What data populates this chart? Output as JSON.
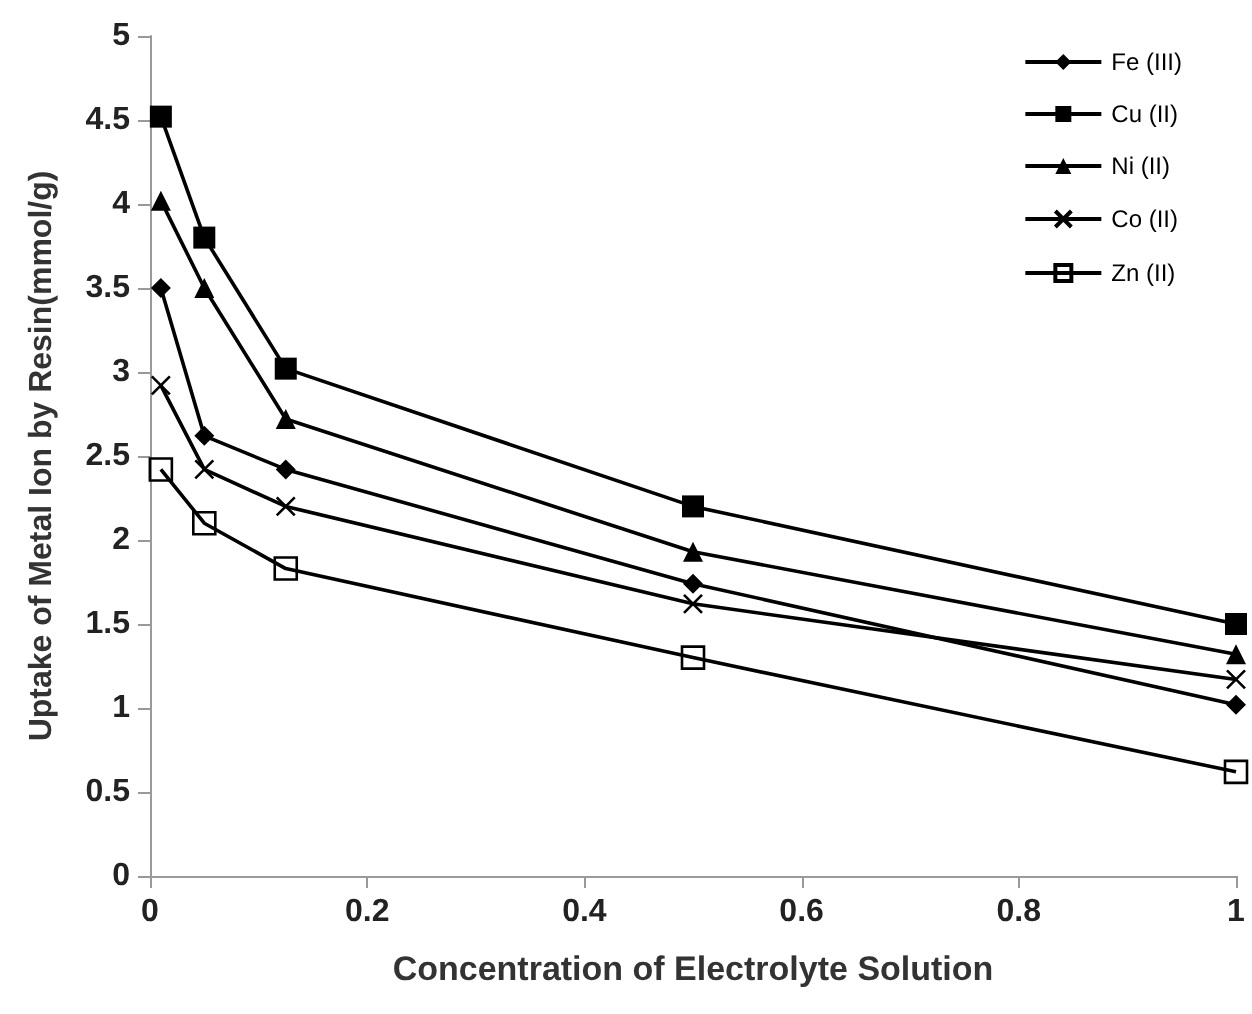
{
  "chart_data": {
    "type": "line",
    "xlabel": "Concentration of Electrolyte Solution",
    "ylabel": "Uptake of Metal Ion by Resin(mmol/g)",
    "x": [
      0.01,
      0.05,
      0.125,
      0.5,
      1
    ],
    "series": [
      {
        "name": "Fe (III)",
        "color": "#000000",
        "marker": "diamond",
        "values": [
          3.5,
          2.62,
          2.42,
          1.74,
          1.02
        ]
      },
      {
        "name": "Cu (II)",
        "color": "#000000",
        "marker": "square",
        "values": [
          4.52,
          3.8,
          3.02,
          2.2,
          1.5
        ]
      },
      {
        "name": "Ni (II)",
        "color": "#000000",
        "marker": "triangle",
        "values": [
          4.02,
          3.5,
          2.72,
          1.93,
          1.32
        ]
      },
      {
        "name": "Co (II)",
        "color": "#000000",
        "marker": "cross",
        "values": [
          2.92,
          2.42,
          2.2,
          1.62,
          1.17
        ]
      },
      {
        "name": "Zn (II)",
        "color": "#000000",
        "marker": "square",
        "values": [
          2.42,
          2.1,
          1.83,
          1.3,
          0.62
        ]
      }
    ],
    "xlim": [
      0,
      1
    ],
    "xticks": [
      0,
      0.2,
      0.4,
      0.6,
      0.8,
      1
    ],
    "ylim": [
      0,
      5
    ],
    "yticks": [
      0,
      0.5,
      1,
      1.5,
      2,
      2.5,
      3,
      3.5,
      4,
      4.5,
      5
    ],
    "grid": false,
    "legend": "top right",
    "line_style": "solid"
  }
}
